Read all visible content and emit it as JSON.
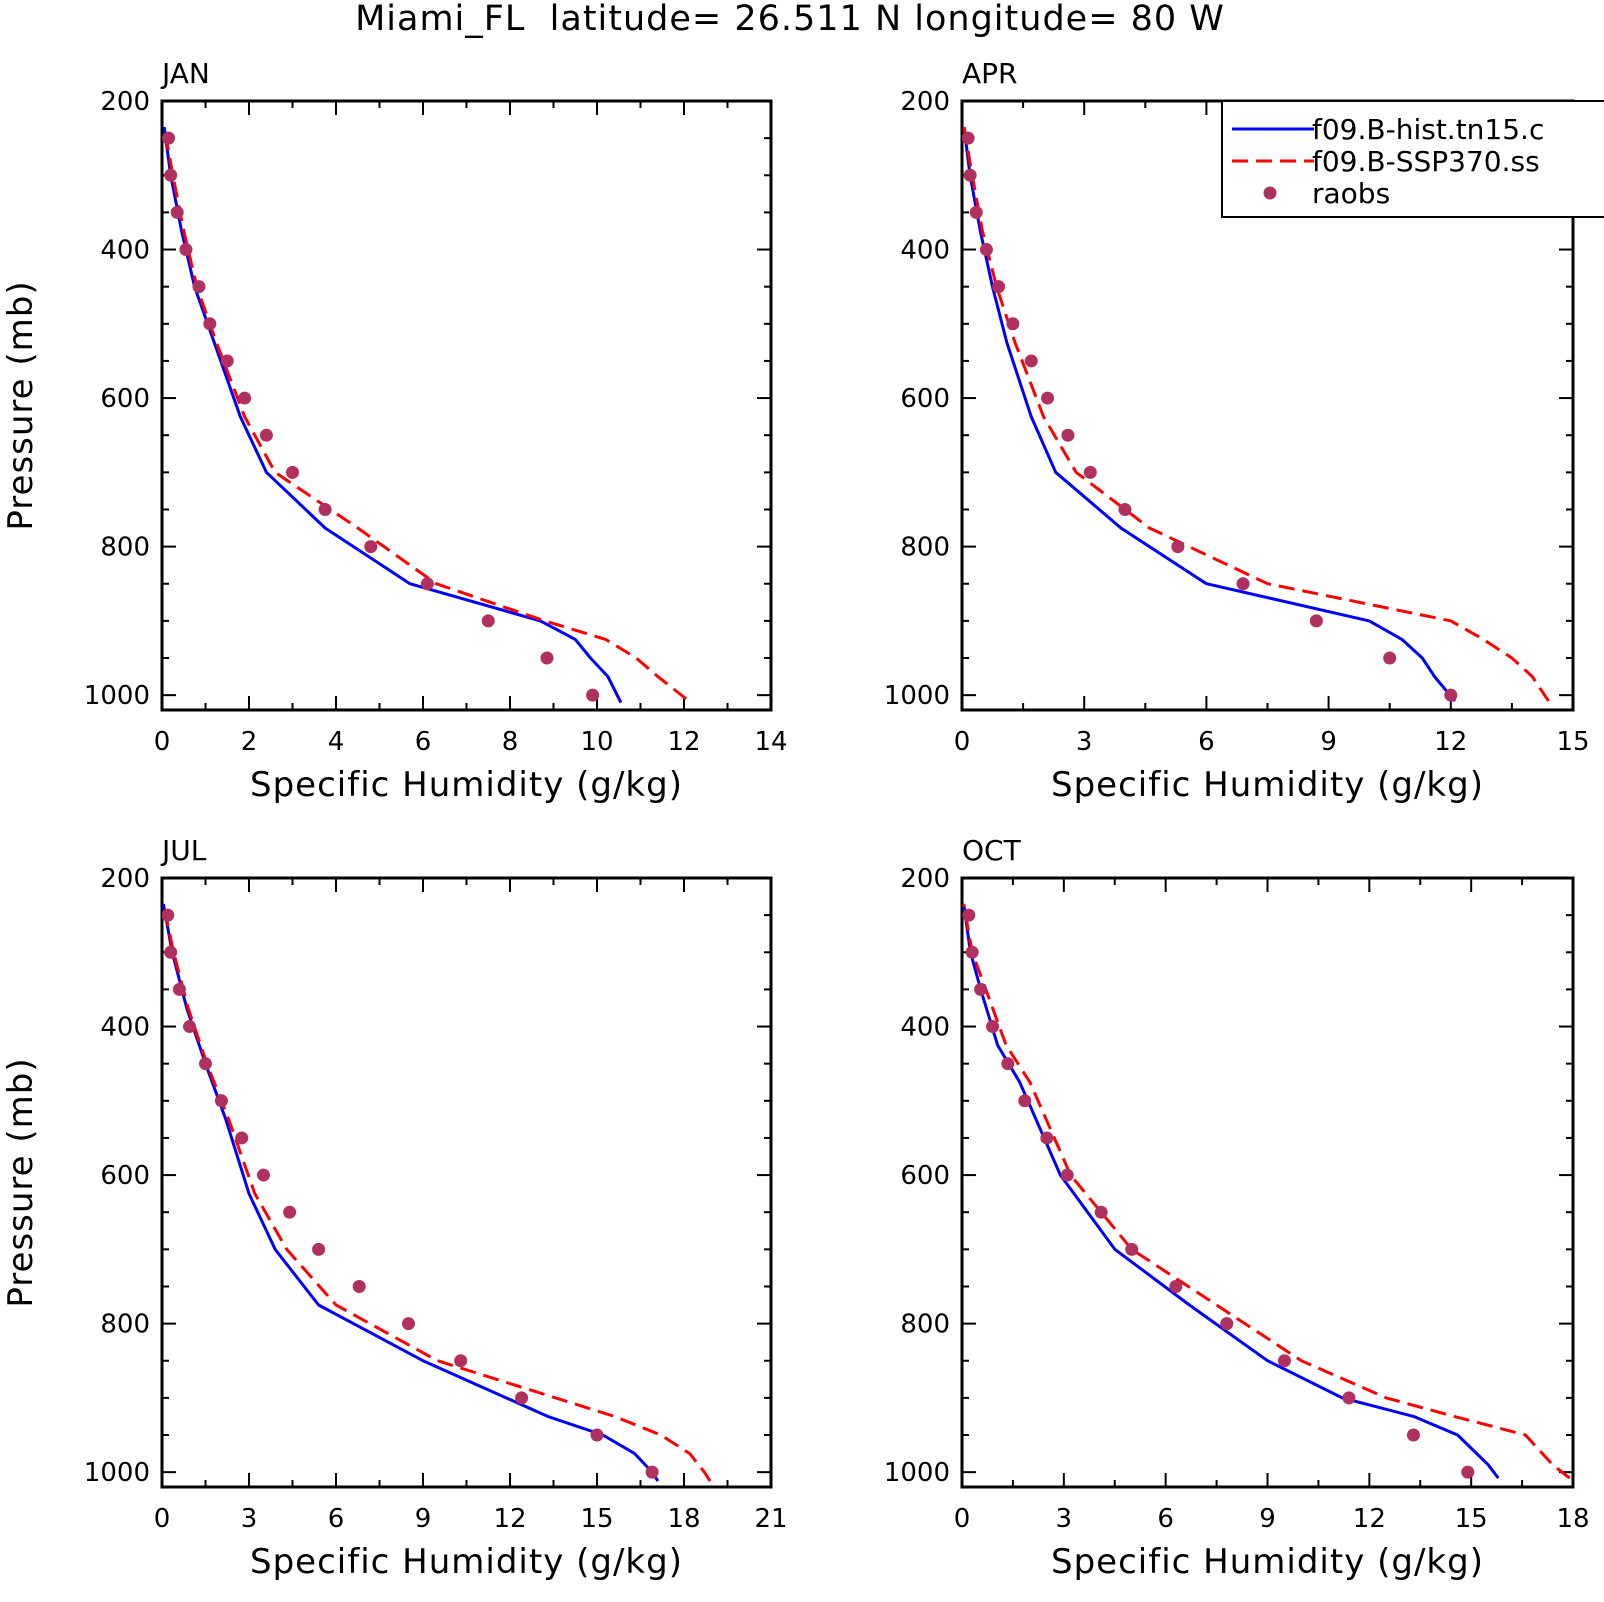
{
  "figure": {
    "title": "Miami_FL  latitude= 26.511 N longitude= 80 W"
  },
  "legend": {
    "entries": [
      {
        "label": "f09.B-hist.tn15.c",
        "style": "solid",
        "color": "#0000ff"
      },
      {
        "label": "f09.B-SSP370.ss",
        "style": "dashed",
        "color": "#ff0000"
      },
      {
        "label": "raobs",
        "style": "marker",
        "color": "#b03060"
      }
    ]
  },
  "colors": {
    "hist": "#0000ff",
    "ssp370": "#ff0000",
    "raobs": "#b03060",
    "axes": "#000000"
  },
  "chart_data": [
    {
      "type": "line",
      "panel_label": "JAN",
      "xlabel": "Specific Humidity (g/kg)",
      "ylabel": "Pressure (mb)",
      "xlim": [
        0,
        14
      ],
      "ylim": [
        1020,
        200
      ],
      "y_inverted": true,
      "xticks": [
        "0",
        "2",
        "4",
        "6",
        "8",
        "10",
        "12",
        "14"
      ],
      "yticks": [
        "200",
        "400",
        "600",
        "800",
        "1000"
      ],
      "series": [
        {
          "name": "f09.B-hist.tn15.c",
          "style": "solid",
          "color": "#0000ff",
          "x": [
            10.55,
            10.25,
            9.85,
            9.5,
            8.7,
            5.7,
            3.75,
            2.4,
            1.8,
            1.2,
            0.75,
            0.45,
            0.2,
            0.05
          ],
          "y": [
            1010,
            975,
            950,
            925,
            900,
            850,
            775,
            700,
            625,
            525,
            450,
            375,
            300,
            235
          ]
        },
        {
          "name": "f09.B-SSP370.ss",
          "style": "dashed",
          "color": "#ff0000",
          "x": [
            12.05,
            11.4,
            10.9,
            10.2,
            8.8,
            6.3,
            4.5,
            2.6,
            1.9,
            1.25,
            0.8,
            0.5,
            0.25,
            0.05
          ],
          "y": [
            1005,
            975,
            950,
            925,
            900,
            850,
            775,
            700,
            625,
            525,
            450,
            375,
            300,
            235
          ]
        },
        {
          "name": "raobs",
          "style": "marker",
          "color": "#b03060",
          "x": [
            9.9,
            8.85,
            7.5,
            6.1,
            4.8,
            3.75,
            3.0,
            2.4,
            1.9,
            1.5,
            1.1,
            0.85,
            0.55,
            0.35,
            0.2,
            0.15
          ],
          "y": [
            1000,
            950,
            900,
            850,
            800,
            750,
            700,
            650,
            600,
            550,
            500,
            450,
            400,
            350,
            300,
            250
          ]
        }
      ]
    },
    {
      "type": "line",
      "panel_label": "APR",
      "xlabel": "Specific Humidity (g/kg)",
      "ylabel": "",
      "xlim": [
        0,
        15
      ],
      "ylim": [
        1020,
        200
      ],
      "y_inverted": true,
      "xticks": [
        "0",
        "3",
        "6",
        "9",
        "12",
        "15"
      ],
      "yticks": [
        "200",
        "400",
        "600",
        "800",
        "1000"
      ],
      "series": [
        {
          "name": "f09.B-hist.tn15.c",
          "style": "solid",
          "color": "#0000ff",
          "x": [
            12.1,
            11.6,
            11.3,
            10.8,
            10.0,
            6.0,
            3.9,
            2.3,
            1.7,
            1.1,
            0.75,
            0.45,
            0.2,
            0.05
          ],
          "y": [
            1008,
            975,
            950,
            925,
            900,
            850,
            775,
            700,
            625,
            525,
            450,
            375,
            300,
            235
          ]
        },
        {
          "name": "f09.B-SSP370.ss",
          "style": "dashed",
          "color": "#ff0000",
          "x": [
            14.4,
            14.0,
            13.5,
            12.8,
            12.0,
            7.5,
            4.6,
            2.8,
            2.0,
            1.3,
            0.85,
            0.5,
            0.25,
            0.05
          ],
          "y": [
            1008,
            975,
            950,
            925,
            900,
            850,
            775,
            700,
            625,
            525,
            450,
            375,
            300,
            235
          ]
        },
        {
          "name": "raobs",
          "style": "marker",
          "color": "#b03060",
          "x": [
            12.0,
            10.5,
            8.7,
            6.9,
            5.3,
            4.0,
            3.15,
            2.6,
            2.1,
            1.7,
            1.25,
            0.9,
            0.6,
            0.35,
            0.2,
            0.15
          ],
          "y": [
            1000,
            950,
            900,
            850,
            800,
            750,
            700,
            650,
            600,
            550,
            500,
            450,
            400,
            350,
            300,
            250
          ]
        }
      ]
    },
    {
      "type": "line",
      "panel_label": "JUL",
      "xlabel": "Specific Humidity (g/kg)",
      "ylabel": "Pressure (mb)",
      "xlim": [
        0,
        21
      ],
      "ylim": [
        1020,
        200
      ],
      "y_inverted": true,
      "xticks": [
        "0",
        "3",
        "6",
        "9",
        "12",
        "15",
        "18",
        "21"
      ],
      "yticks": [
        "200",
        "400",
        "600",
        "800",
        "1000"
      ],
      "series": [
        {
          "name": "f09.B-hist.tn15.c",
          "style": "solid",
          "color": "#0000ff",
          "x": [
            17.1,
            16.9,
            16.3,
            15.2,
            13.3,
            9.0,
            5.4,
            3.9,
            3.0,
            2.2,
            1.5,
            0.85,
            0.35,
            0.05
          ],
          "y": [
            1012,
            1000,
            975,
            950,
            925,
            850,
            775,
            700,
            625,
            525,
            450,
            375,
            300,
            235
          ]
        },
        {
          "name": "f09.B-SSP370.ss",
          "style": "dashed",
          "color": "#ff0000",
          "x": [
            18.9,
            18.7,
            18.2,
            17.2,
            15.6,
            9.5,
            6.0,
            4.3,
            3.2,
            2.3,
            1.55,
            0.9,
            0.4,
            0.05
          ],
          "y": [
            1012,
            1000,
            975,
            950,
            925,
            850,
            775,
            700,
            625,
            525,
            450,
            375,
            300,
            235
          ]
        },
        {
          "name": "raobs",
          "style": "marker",
          "color": "#b03060",
          "x": [
            16.9,
            15.0,
            12.4,
            10.3,
            8.5,
            6.8,
            5.4,
            4.4,
            3.5,
            2.75,
            2.05,
            1.5,
            0.95,
            0.6,
            0.3,
            0.2
          ],
          "y": [
            1000,
            950,
            900,
            850,
            800,
            750,
            700,
            650,
            600,
            550,
            500,
            450,
            400,
            350,
            300,
            250
          ]
        }
      ]
    },
    {
      "type": "line",
      "panel_label": "OCT",
      "xlabel": "Specific Humidity (g/kg)",
      "ylabel": "",
      "xlim": [
        0,
        18
      ],
      "ylim": [
        1020,
        200
      ],
      "y_inverted": true,
      "xticks": [
        "0",
        "3",
        "6",
        "9",
        "12",
        "15",
        "18"
      ],
      "yticks": [
        "200",
        "400",
        "600",
        "800",
        "1000"
      ],
      "series": [
        {
          "name": "f09.B-hist.tn15.c",
          "style": "solid",
          "color": "#0000ff",
          "x": [
            15.8,
            15.5,
            14.6,
            13.3,
            11.2,
            9.0,
            6.7,
            4.5,
            2.9,
            1.7,
            1.05,
            0.55,
            0.25,
            0.05
          ],
          "y": [
            1008,
            990,
            950,
            925,
            900,
            850,
            775,
            700,
            600,
            475,
            425,
            350,
            300,
            235
          ]
        },
        {
          "name": "f09.B-SSP370.ss",
          "style": "dashed",
          "color": "#ff0000",
          "x": [
            17.9,
            17.4,
            16.6,
            14.5,
            12.5,
            10.0,
            7.5,
            5.0,
            3.2,
            2.0,
            1.3,
            0.7,
            0.3,
            0.05
          ],
          "y": [
            1008,
            990,
            950,
            925,
            900,
            850,
            775,
            700,
            600,
            475,
            425,
            350,
            300,
            235
          ]
        },
        {
          "name": "raobs",
          "style": "marker",
          "color": "#b03060",
          "x": [
            14.9,
            13.3,
            11.4,
            9.5,
            7.8,
            6.3,
            5.0,
            4.1,
            3.1,
            2.5,
            1.85,
            1.35,
            0.9,
            0.55,
            0.3,
            0.2
          ],
          "y": [
            1000,
            950,
            900,
            850,
            800,
            750,
            700,
            650,
            600,
            550,
            500,
            450,
            400,
            350,
            300,
            250
          ]
        }
      ]
    }
  ]
}
